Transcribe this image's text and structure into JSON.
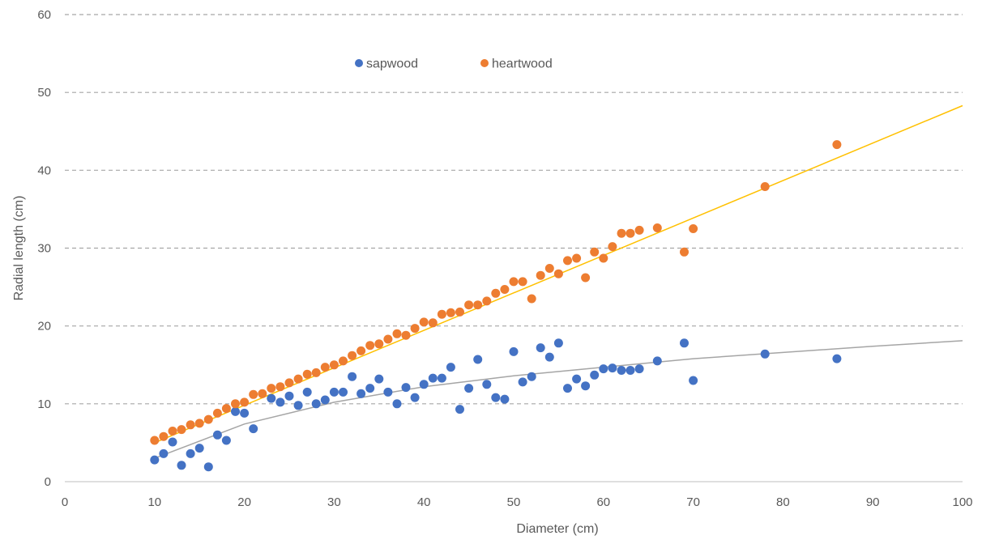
{
  "chart_data": {
    "type": "scatter",
    "title": "",
    "xlabel": "Diameter (cm)",
    "ylabel": "Radial length (cm)",
    "xlim": [
      0,
      100
    ],
    "ylim": [
      0,
      60
    ],
    "xticks": [
      "0",
      "10",
      "20",
      "30",
      "40",
      "50",
      "60",
      "70",
      "80",
      "90",
      "100"
    ],
    "yticks": [
      "0",
      "10",
      "20",
      "30",
      "40",
      "50",
      "60"
    ],
    "grid": "horizontal dashed",
    "legend_position": "top-center",
    "series": [
      {
        "name": "sapwood",
        "color": "#4472C4",
        "points": [
          [
            10,
            2.8
          ],
          [
            11,
            3.6
          ],
          [
            12,
            5.1
          ],
          [
            13,
            2.1
          ],
          [
            14,
            3.6
          ],
          [
            15,
            4.3
          ],
          [
            16,
            1.9
          ],
          [
            17,
            6.0
          ],
          [
            18,
            5.3
          ],
          [
            19,
            9.0
          ],
          [
            20,
            8.8
          ],
          [
            21,
            6.8
          ],
          [
            23,
            10.7
          ],
          [
            24,
            10.2
          ],
          [
            25,
            11.0
          ],
          [
            26,
            9.8
          ],
          [
            27,
            11.5
          ],
          [
            28,
            10.0
          ],
          [
            29,
            10.5
          ],
          [
            30,
            11.5
          ],
          [
            31,
            11.5
          ],
          [
            32,
            13.5
          ],
          [
            33,
            11.3
          ],
          [
            34,
            12.0
          ],
          [
            35,
            13.2
          ],
          [
            36,
            11.5
          ],
          [
            37,
            10.0
          ],
          [
            38,
            12.1
          ],
          [
            39,
            10.8
          ],
          [
            40,
            12.5
          ],
          [
            41,
            13.3
          ],
          [
            42,
            13.3
          ],
          [
            43,
            14.7
          ],
          [
            44,
            9.3
          ],
          [
            45,
            12.0
          ],
          [
            46,
            15.7
          ],
          [
            47,
            12.5
          ],
          [
            48,
            10.8
          ],
          [
            49,
            10.6
          ],
          [
            50,
            16.7
          ],
          [
            51,
            12.8
          ],
          [
            52,
            13.5
          ],
          [
            53,
            17.2
          ],
          [
            54,
            16.0
          ],
          [
            55,
            17.8
          ],
          [
            56,
            12.0
          ],
          [
            57,
            13.2
          ],
          [
            58,
            12.3
          ],
          [
            59,
            13.7
          ],
          [
            60,
            14.5
          ],
          [
            61,
            14.6
          ],
          [
            62,
            14.3
          ],
          [
            63,
            14.3
          ],
          [
            64,
            14.5
          ],
          [
            66,
            15.5
          ],
          [
            69,
            17.8
          ],
          [
            70,
            13.0
          ],
          [
            78,
            16.4
          ],
          [
            86,
            15.8
          ]
        ]
      },
      {
        "name": "heartwood",
        "color": "#ED7D31",
        "points": [
          [
            10,
            5.3
          ],
          [
            11,
            5.8
          ],
          [
            12,
            6.5
          ],
          [
            13,
            6.7
          ],
          [
            14,
            7.3
          ],
          [
            15,
            7.5
          ],
          [
            16,
            8.0
          ],
          [
            17,
            8.8
          ],
          [
            18,
            9.4
          ],
          [
            19,
            10.0
          ],
          [
            20,
            10.2
          ],
          [
            21,
            11.2
          ],
          [
            22,
            11.3
          ],
          [
            23,
            12.0
          ],
          [
            24,
            12.2
          ],
          [
            25,
            12.7
          ],
          [
            26,
            13.2
          ],
          [
            27,
            13.8
          ],
          [
            28,
            14.0
          ],
          [
            29,
            14.7
          ],
          [
            30,
            15.0
          ],
          [
            31,
            15.5
          ],
          [
            32,
            16.2
          ],
          [
            33,
            16.8
          ],
          [
            34,
            17.5
          ],
          [
            35,
            17.7
          ],
          [
            36,
            18.3
          ],
          [
            37,
            19.0
          ],
          [
            38,
            18.8
          ],
          [
            39,
            19.7
          ],
          [
            40,
            20.5
          ],
          [
            41,
            20.4
          ],
          [
            42,
            21.5
          ],
          [
            43,
            21.7
          ],
          [
            44,
            21.8
          ],
          [
            45,
            22.7
          ],
          [
            46,
            22.7
          ],
          [
            47,
            23.2
          ],
          [
            48,
            24.2
          ],
          [
            49,
            24.7
          ],
          [
            50,
            25.7
          ],
          [
            51,
            25.7
          ],
          [
            52,
            23.5
          ],
          [
            53,
            26.5
          ],
          [
            54,
            27.4
          ],
          [
            55,
            26.7
          ],
          [
            56,
            28.4
          ],
          [
            57,
            28.7
          ],
          [
            58,
            26.2
          ],
          [
            59,
            29.5
          ],
          [
            60,
            28.7
          ],
          [
            61,
            30.2
          ],
          [
            62,
            31.9
          ],
          [
            63,
            31.9
          ],
          [
            64,
            32.3
          ],
          [
            66,
            32.6
          ],
          [
            69,
            29.5
          ],
          [
            70,
            32.5
          ],
          [
            78,
            37.9
          ],
          [
            86,
            43.3
          ]
        ]
      }
    ],
    "trendlines": [
      {
        "series": "heartwood",
        "color": "#FFC000",
        "kind": "linear",
        "points": [
          [
            10,
            5.0
          ],
          [
            100,
            48.3
          ]
        ]
      },
      {
        "series": "sapwood",
        "color": "#A5A5A5",
        "kind": "logarithmic",
        "points": [
          [
            10,
            3.0
          ],
          [
            20,
            7.4
          ],
          [
            30,
            10.2
          ],
          [
            40,
            12.2
          ],
          [
            50,
            13.6
          ],
          [
            60,
            14.7
          ],
          [
            70,
            15.8
          ],
          [
            80,
            16.6
          ],
          [
            90,
            17.4
          ],
          [
            100,
            18.1
          ]
        ]
      }
    ]
  }
}
